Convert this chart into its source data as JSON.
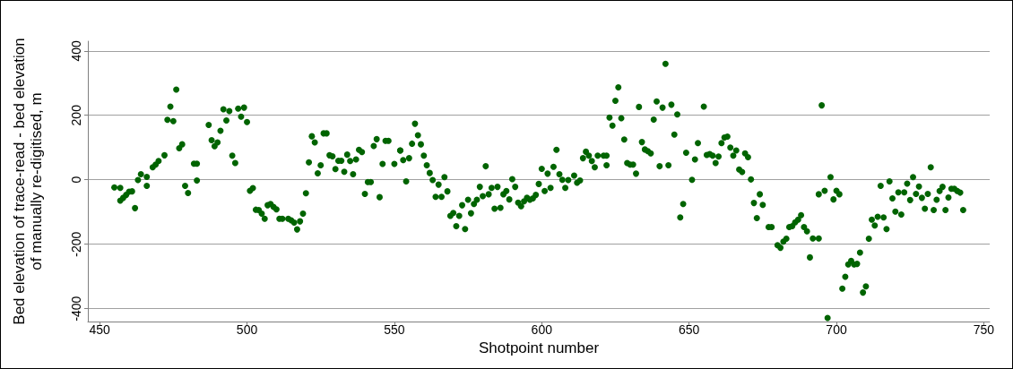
{
  "chart_data": {
    "type": "scatter",
    "xlabel": "Shotpoint number",
    "ylabel": "Bed elevation of trace-read - bed elevation\nof manually re-digitised, m",
    "xlim": [
      446,
      752
    ],
    "xticks": [
      450,
      500,
      550,
      600,
      650,
      700,
      750
    ],
    "ylim": [
      -440,
      430
    ],
    "yticks": [
      -400,
      -200,
      0,
      200,
      400
    ],
    "grid": "y",
    "marker": "circle",
    "series": [
      {
        "color": "#006400",
        "x": [
          455,
          457,
          457,
          458,
          459,
          460,
          461,
          462,
          463,
          464,
          466,
          466,
          468,
          469,
          470,
          472,
          473,
          474,
          475,
          476,
          477,
          478,
          479,
          480,
          482,
          483,
          483,
          487,
          488,
          489,
          490,
          491,
          492,
          493,
          494,
          495,
          496,
          497,
          498,
          499,
          500,
          501,
          502,
          503,
          504,
          505,
          506,
          507,
          508,
          509,
          510,
          511,
          512,
          514,
          515,
          516,
          517,
          518,
          519,
          520,
          521,
          522,
          523,
          524,
          525,
          526,
          527,
          528,
          529,
          530,
          531,
          532,
          533,
          534,
          535,
          536,
          537,
          538,
          539,
          540,
          541,
          542,
          543,
          544,
          545,
          546,
          547,
          548,
          550,
          552,
          552,
          553,
          554,
          555,
          556,
          557,
          558,
          559,
          560,
          561,
          562,
          563,
          564,
          565,
          566,
          567,
          568,
          569,
          570,
          571,
          572,
          573,
          574,
          575,
          576,
          577,
          578,
          579,
          580,
          581,
          582,
          583,
          584,
          585,
          586,
          587,
          588,
          589,
          590,
          591,
          592,
          593,
          594,
          595,
          596,
          597,
          598,
          599,
          600,
          601,
          602,
          603,
          604,
          605,
          606,
          607,
          608,
          609,
          611,
          612,
          613,
          614,
          615,
          616,
          617,
          618,
          619,
          621,
          622,
          622,
          623,
          624,
          625,
          626,
          627,
          628,
          629,
          630,
          631,
          632,
          633,
          634,
          635,
          636,
          637,
          638,
          639,
          640,
          641,
          642,
          643,
          644,
          645,
          646,
          647,
          648,
          649,
          651,
          652,
          653,
          655,
          656,
          657,
          658,
          659,
          660,
          661,
          662,
          663,
          664,
          665,
          666,
          667,
          668,
          669,
          670,
          671,
          672,
          673,
          674,
          675,
          677,
          678,
          680,
          681,
          682,
          683,
          684,
          685,
          686,
          687,
          688,
          689,
          690,
          691,
          692,
          694,
          694,
          695,
          696,
          697,
          698,
          699,
          700,
          701,
          702,
          703,
          704,
          705,
          706,
          707,
          708,
          709,
          710,
          711,
          712,
          713,
          714,
          715,
          716,
          717,
          718,
          719,
          720,
          721,
          722,
          723,
          724,
          725,
          726,
          727,
          728,
          729,
          730,
          731,
          732,
          733,
          734,
          735,
          736,
          737,
          738,
          739,
          740,
          741,
          742,
          743
        ],
        "values": [
          -24,
          -25,
          -65,
          -56,
          -47,
          -37,
          -36,
          -88,
          -1,
          17,
          9,
          -19,
          39,
          47,
          58,
          76,
          186,
          227,
          182,
          280,
          98,
          110,
          -19,
          -41,
          50,
          50,
          -2,
          170,
          123,
          104,
          116,
          152,
          219,
          184,
          213,
          75,
          52,
          221,
          196,
          224,
          179,
          -34,
          -26,
          -93,
          -94,
          -105,
          -121,
          -79,
          -75,
          -84,
          -92,
          -121,
          -121,
          -121,
          -126,
          -133,
          -154,
          -129,
          -105,
          -42,
          54,
          135,
          116,
          20,
          45,
          144,
          144,
          76,
          73,
          33,
          59,
          59,
          25,
          78,
          58,
          17,
          63,
          93,
          86,
          -44,
          -7,
          -7,
          105,
          126,
          -54,
          49,
          121,
          121,
          49,
          91,
          91,
          61,
          -5,
          67,
          112,
          174,
          138,
          110,
          75,
          45,
          21,
          -1,
          -53,
          -15,
          -53,
          8,
          -36,
          -112,
          -103,
          -144,
          -112,
          -79,
          -153,
          -62,
          -104,
          -75,
          -62,
          -22,
          -51,
          42,
          -45,
          -25,
          -90,
          -22,
          -87,
          -45,
          -35,
          -61,
          2,
          -22,
          -71,
          -82,
          -67,
          -56,
          -62,
          -58,
          -47,
          -13,
          34,
          -35,
          19,
          -25,
          40,
          93,
          17,
          0,
          -25,
          -1,
          13,
          -9,
          -2,
          67,
          87,
          75,
          58,
          39,
          75,
          75,
          75,
          45,
          193,
          168,
          245,
          287,
          191,
          125,
          52,
          47,
          47,
          19,
          226,
          117,
          94,
          89,
          82,
          187,
          243,
          42,
          224,
          360,
          45,
          233,
          140,
          203,
          -117,
          -75,
          84,
          0,
          63,
          114,
          227,
          77,
          80,
          75,
          52,
          72,
          114,
          131,
          134,
          100,
          75,
          91,
          32,
          24,
          82,
          70,
          1,
          -72,
          -119,
          -45,
          -78,
          -147,
          -147,
          -203,
          -211,
          -192,
          -183,
          -147,
          -144,
          -132,
          -124,
          -110,
          -147,
          -160,
          -241,
          -182,
          -182,
          -45,
          231,
          -34,
          -429,
          8,
          -61,
          -34,
          -45,
          -338,
          -301,
          -263,
          -252,
          -263,
          -261,
          -226,
          -350,
          -331,
          -183,
          -124,
          -142,
          -115,
          -19,
          -117,
          -153,
          -5,
          -58,
          -99,
          -39,
          -108,
          -39,
          -12,
          -63,
          8,
          -44,
          -21,
          -56,
          -90,
          -44,
          39,
          -94,
          -62,
          -35,
          -22,
          -94,
          -55,
          -28,
          -28,
          -35,
          -40,
          -94
        ]
      }
    ]
  }
}
